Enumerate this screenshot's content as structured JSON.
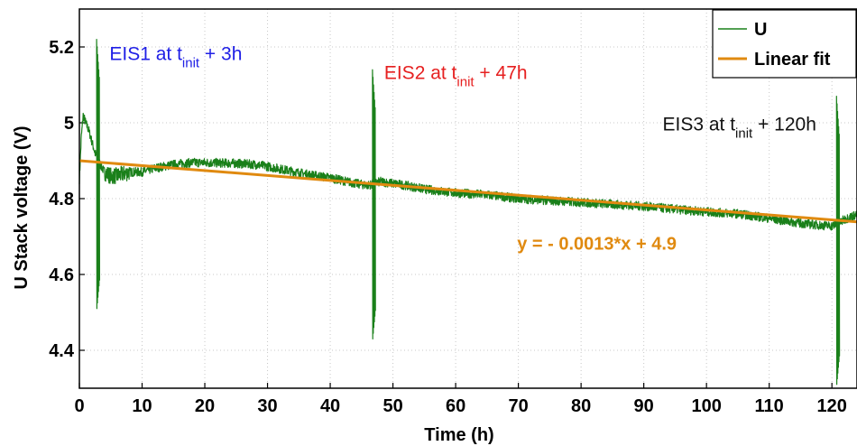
{
  "chart_data": {
    "type": "line",
    "xlabel": "Time (h)",
    "ylabel": "U Stack voltage (V)",
    "xlim": [
      0,
      124
    ],
    "ylim": [
      4.3,
      5.3
    ],
    "xticks": [
      0,
      10,
      20,
      30,
      40,
      50,
      60,
      70,
      80,
      90,
      100,
      110,
      120
    ],
    "yticks": [
      4.4,
      4.6,
      4.8,
      5.0,
      5.2
    ],
    "ytick_labels": [
      "4.4",
      "4.6",
      "4.8",
      "5",
      "5.2"
    ],
    "grid": true,
    "legend": "top-right",
    "series": [
      {
        "name": "U",
        "color": "#1a801a",
        "x": [
          0.0,
          0.3,
          0.6,
          1.0,
          1.5,
          2.0,
          2.5,
          3.0,
          4.0,
          5.0,
          6.0,
          8.0,
          10.0,
          12.0,
          15.0,
          18.0,
          20.0,
          25.0,
          28.0,
          30.0,
          33.0,
          36.0,
          40.0,
          44.0,
          46.0,
          48.0,
          52.0,
          55.0,
          60.0,
          65.0,
          70.0,
          75.0,
          80.0,
          85.0,
          90.0,
          95.0,
          100.0,
          105.0,
          110.0,
          115.0,
          118.0,
          120.0,
          121.0,
          122.0,
          123.0,
          124.0
        ],
        "y": [
          4.85,
          4.96,
          5.02,
          5.0,
          4.98,
          4.95,
          4.92,
          4.9,
          4.87,
          4.86,
          4.86,
          4.87,
          4.87,
          4.88,
          4.89,
          4.895,
          4.895,
          4.893,
          4.89,
          4.885,
          4.875,
          4.865,
          4.855,
          4.84,
          4.835,
          4.845,
          4.835,
          4.825,
          4.815,
          4.81,
          4.8,
          4.795,
          4.79,
          4.785,
          4.78,
          4.772,
          4.765,
          4.76,
          4.748,
          4.735,
          4.73,
          4.728,
          4.735,
          4.745,
          4.752,
          4.758
        ],
        "spikes": [
          {
            "x": 3.0,
            "max": 5.22,
            "min": 4.51
          },
          {
            "x": 47.0,
            "max": 5.14,
            "min": 4.43
          },
          {
            "x": 121.0,
            "max": 5.07,
            "min": 4.31
          }
        ]
      },
      {
        "name": "Linear fit",
        "color": "#e08a10",
        "x": [
          0,
          124
        ],
        "y": [
          4.9,
          4.7388
        ]
      }
    ],
    "annotations": [
      {
        "text": "EIS1 at t",
        "sub": "init",
        "tail": " + 3h",
        "color": "#2020e6",
        "x": 4.8,
        "y": 5.165
      },
      {
        "text": "EIS2 at t",
        "sub": "init",
        "tail": " + 47h",
        "color": "#e62020",
        "x": 48.6,
        "y": 5.115
      },
      {
        "text": "EIS3 at t",
        "sub": "init",
        "tail": " + 120h",
        "color": "#111111",
        "x": 93.0,
        "y": 4.98
      },
      {
        "text": "y = - 0.0013*x + 4.9",
        "color": "#e08a10",
        "x": 69.8,
        "y": 4.665
      }
    ]
  }
}
